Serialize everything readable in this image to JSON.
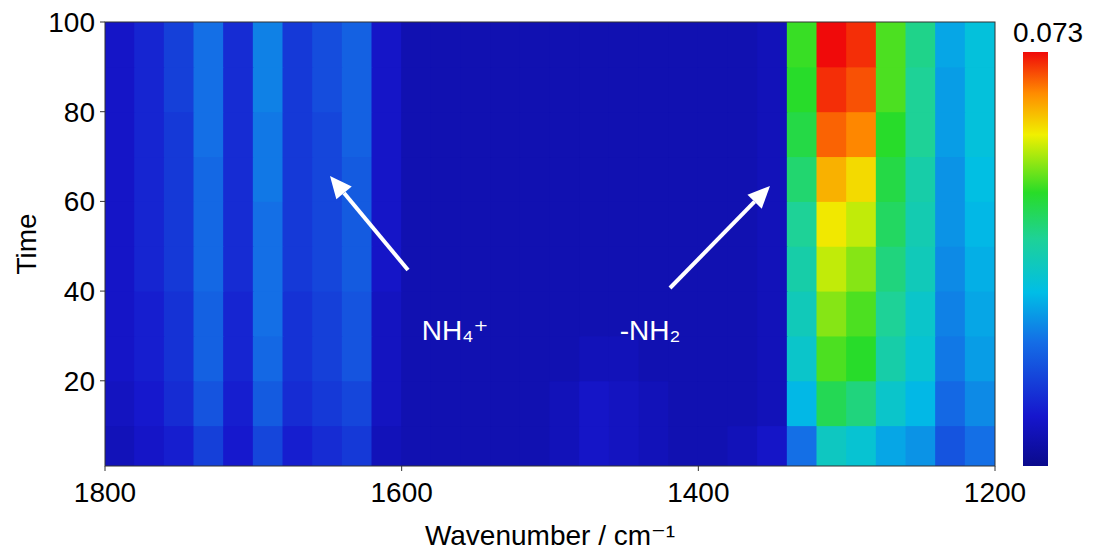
{
  "chart_data": {
    "type": "heatmap",
    "x_label": "Wavenumber / cm⁻¹",
    "y_label": "Time",
    "annotations": [
      {
        "text": "NH₄⁺"
      },
      {
        "text": "-NH₂"
      }
    ],
    "xlim": [
      1800,
      1200
    ],
    "xticks": [
      1800,
      1600,
      1400,
      1200
    ],
    "ylim": [
      1,
      100
    ],
    "yticks": [
      20,
      40,
      60,
      80,
      100
    ],
    "grid": false,
    "x": [
      1790,
      1770,
      1750,
      1730,
      1710,
      1690,
      1670,
      1650,
      1630,
      1610,
      1590,
      1570,
      1550,
      1530,
      1510,
      1490,
      1470,
      1450,
      1430,
      1410,
      1390,
      1370,
      1350,
      1330,
      1310,
      1290,
      1270,
      1250,
      1230,
      1210
    ],
    "y": [
      5,
      15,
      25,
      35,
      45,
      55,
      65,
      75,
      85,
      95
    ],
    "cells": [
      [
        0.006,
        0.008,
        0.01,
        0.015,
        0.009,
        0.016,
        0.01,
        0.012,
        0.014,
        0.006,
        0.005,
        0.005,
        0.005,
        0.005,
        0.005,
        0.006,
        0.008,
        0.007,
        0.006,
        0.005,
        0.005,
        0.006,
        0.008,
        0.022,
        0.035,
        0.033,
        0.028,
        0.026,
        0.018,
        0.022
      ],
      [
        0.007,
        0.009,
        0.012,
        0.018,
        0.01,
        0.019,
        0.012,
        0.014,
        0.016,
        0.007,
        0.005,
        0.005,
        0.005,
        0.005,
        0.005,
        0.006,
        0.008,
        0.007,
        0.006,
        0.005,
        0.005,
        0.005,
        0.006,
        0.03,
        0.045,
        0.042,
        0.034,
        0.03,
        0.021,
        0.025
      ],
      [
        0.008,
        0.01,
        0.013,
        0.02,
        0.011,
        0.021,
        0.013,
        0.015,
        0.018,
        0.007,
        0.005,
        0.005,
        0.005,
        0.005,
        0.005,
        0.005,
        0.006,
        0.006,
        0.005,
        0.005,
        0.005,
        0.005,
        0.006,
        0.034,
        0.05,
        0.048,
        0.038,
        0.033,
        0.023,
        0.027
      ],
      [
        0.008,
        0.01,
        0.013,
        0.02,
        0.011,
        0.022,
        0.013,
        0.015,
        0.018,
        0.007,
        0.005,
        0.005,
        0.005,
        0.005,
        0.005,
        0.005,
        0.005,
        0.005,
        0.005,
        0.005,
        0.005,
        0.005,
        0.006,
        0.036,
        0.053,
        0.05,
        0.04,
        0.034,
        0.024,
        0.028
      ],
      [
        0.008,
        0.011,
        0.014,
        0.021,
        0.012,
        0.022,
        0.014,
        0.016,
        0.019,
        0.008,
        0.005,
        0.005,
        0.005,
        0.005,
        0.005,
        0.005,
        0.005,
        0.005,
        0.005,
        0.005,
        0.005,
        0.005,
        0.006,
        0.038,
        0.056,
        0.053,
        0.042,
        0.036,
        0.025,
        0.029
      ],
      [
        0.008,
        0.011,
        0.014,
        0.021,
        0.012,
        0.022,
        0.014,
        0.016,
        0.019,
        0.008,
        0.005,
        0.005,
        0.005,
        0.005,
        0.005,
        0.005,
        0.005,
        0.005,
        0.005,
        0.005,
        0.005,
        0.005,
        0.006,
        0.04,
        0.059,
        0.056,
        0.044,
        0.037,
        0.026,
        0.03
      ],
      [
        0.008,
        0.011,
        0.014,
        0.021,
        0.012,
        0.023,
        0.014,
        0.016,
        0.019,
        0.008,
        0.005,
        0.005,
        0.005,
        0.005,
        0.005,
        0.005,
        0.005,
        0.005,
        0.005,
        0.005,
        0.005,
        0.005,
        0.006,
        0.043,
        0.063,
        0.06,
        0.046,
        0.038,
        0.026,
        0.031
      ],
      [
        0.008,
        0.011,
        0.014,
        0.022,
        0.012,
        0.023,
        0.014,
        0.016,
        0.02,
        0.008,
        0.005,
        0.005,
        0.005,
        0.005,
        0.005,
        0.005,
        0.005,
        0.005,
        0.005,
        0.005,
        0.005,
        0.005,
        0.006,
        0.046,
        0.068,
        0.066,
        0.048,
        0.04,
        0.027,
        0.032
      ],
      [
        0.008,
        0.011,
        0.015,
        0.022,
        0.012,
        0.024,
        0.014,
        0.017,
        0.02,
        0.008,
        0.005,
        0.005,
        0.005,
        0.005,
        0.005,
        0.005,
        0.005,
        0.005,
        0.005,
        0.005,
        0.005,
        0.005,
        0.006,
        0.048,
        0.071,
        0.069,
        0.05,
        0.04,
        0.027,
        0.032
      ],
      [
        0.008,
        0.011,
        0.015,
        0.022,
        0.012,
        0.024,
        0.014,
        0.017,
        0.02,
        0.008,
        0.005,
        0.005,
        0.005,
        0.005,
        0.005,
        0.005,
        0.005,
        0.005,
        0.005,
        0.005,
        0.005,
        0.005,
        0.006,
        0.049,
        0.073,
        0.071,
        0.05,
        0.041,
        0.028,
        0.032
      ]
    ],
    "colorbar_range": [
      0,
      0.073
    ],
    "colorbar_ticks": [
      0.073
    ]
  }
}
